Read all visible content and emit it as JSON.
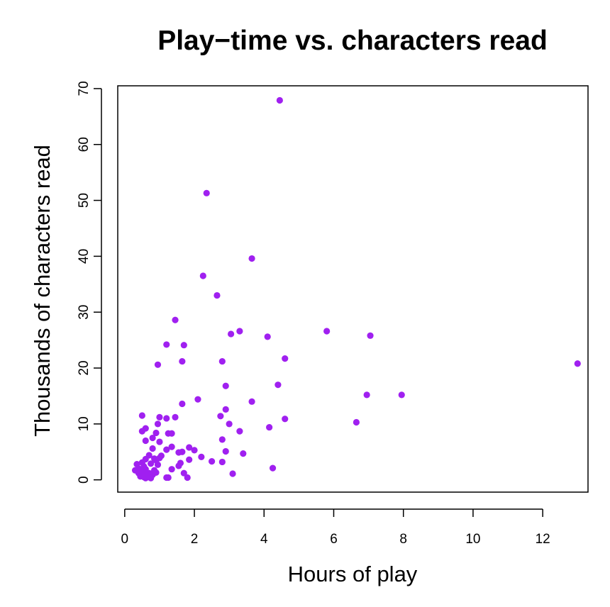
{
  "chart_data": {
    "type": "scatter",
    "title": "Play−time vs. characters read",
    "xlabel": "Hours of play",
    "ylabel": "Thousands of characters read",
    "xlim": [
      -0.2,
      13.3
    ],
    "ylim": [
      -2.2,
      70.5
    ],
    "xticks": [
      0,
      2,
      4,
      6,
      8,
      10,
      12
    ],
    "yticks": [
      0,
      10,
      20,
      30,
      40,
      50,
      60,
      70
    ],
    "point_color": "#a020f0",
    "grid": false,
    "legend": "none",
    "points": [
      {
        "x": 4.45,
        "y": 67.9
      },
      {
        "x": 2.35,
        "y": 51.3
      },
      {
        "x": 3.65,
        "y": 39.6
      },
      {
        "x": 2.25,
        "y": 36.5
      },
      {
        "x": 2.65,
        "y": 33.0
      },
      {
        "x": 1.45,
        "y": 28.6
      },
      {
        "x": 3.3,
        "y": 26.6
      },
      {
        "x": 3.05,
        "y": 26.1
      },
      {
        "x": 5.8,
        "y": 26.6
      },
      {
        "x": 7.05,
        "y": 25.8
      },
      {
        "x": 4.1,
        "y": 25.6
      },
      {
        "x": 1.2,
        "y": 24.2
      },
      {
        "x": 1.7,
        "y": 24.1
      },
      {
        "x": 4.6,
        "y": 21.7
      },
      {
        "x": 1.65,
        "y": 21.2
      },
      {
        "x": 2.8,
        "y": 21.2
      },
      {
        "x": 0.95,
        "y": 20.6
      },
      {
        "x": 13.0,
        "y": 20.8
      },
      {
        "x": 4.4,
        "y": 17.0
      },
      {
        "x": 2.9,
        "y": 16.8
      },
      {
        "x": 6.95,
        "y": 15.2
      },
      {
        "x": 7.95,
        "y": 15.2
      },
      {
        "x": 2.1,
        "y": 14.4
      },
      {
        "x": 3.65,
        "y": 14.0
      },
      {
        "x": 1.65,
        "y": 13.6
      },
      {
        "x": 2.9,
        "y": 12.6
      },
      {
        "x": 0.5,
        "y": 11.5
      },
      {
        "x": 2.75,
        "y": 11.4
      },
      {
        "x": 1.0,
        "y": 11.2
      },
      {
        "x": 1.2,
        "y": 11.0
      },
      {
        "x": 1.45,
        "y": 11.2
      },
      {
        "x": 4.6,
        "y": 10.9
      },
      {
        "x": 6.65,
        "y": 10.3
      },
      {
        "x": 3.0,
        "y": 10.0
      },
      {
        "x": 0.95,
        "y": 10.0
      },
      {
        "x": 4.15,
        "y": 9.4
      },
      {
        "x": 0.6,
        "y": 9.2
      },
      {
        "x": 0.5,
        "y": 8.7
      },
      {
        "x": 3.3,
        "y": 8.7
      },
      {
        "x": 0.9,
        "y": 8.4
      },
      {
        "x": 1.25,
        "y": 8.3
      },
      {
        "x": 1.35,
        "y": 8.3
      },
      {
        "x": 0.8,
        "y": 7.5
      },
      {
        "x": 2.8,
        "y": 7.2
      },
      {
        "x": 0.6,
        "y": 7.0
      },
      {
        "x": 1.0,
        "y": 6.8
      },
      {
        "x": 1.35,
        "y": 5.9
      },
      {
        "x": 1.85,
        "y": 5.8
      },
      {
        "x": 0.8,
        "y": 5.6
      },
      {
        "x": 1.2,
        "y": 5.4
      },
      {
        "x": 2.0,
        "y": 5.3
      },
      {
        "x": 2.9,
        "y": 5.1
      },
      {
        "x": 1.65,
        "y": 5.0
      },
      {
        "x": 1.55,
        "y": 4.9
      },
      {
        "x": 3.4,
        "y": 4.7
      },
      {
        "x": 1.05,
        "y": 4.3
      },
      {
        "x": 0.7,
        "y": 4.4
      },
      {
        "x": 2.2,
        "y": 4.1
      },
      {
        "x": 0.6,
        "y": 3.7
      },
      {
        "x": 0.85,
        "y": 3.8
      },
      {
        "x": 1.0,
        "y": 3.9
      },
      {
        "x": 1.85,
        "y": 3.6
      },
      {
        "x": 0.9,
        "y": 3.5
      },
      {
        "x": 2.5,
        "y": 3.3
      },
      {
        "x": 2.8,
        "y": 3.2
      },
      {
        "x": 0.5,
        "y": 3.1
      },
      {
        "x": 1.6,
        "y": 3.0
      },
      {
        "x": 0.75,
        "y": 2.9
      },
      {
        "x": 0.35,
        "y": 2.8
      },
      {
        "x": 0.95,
        "y": 2.7
      },
      {
        "x": 1.55,
        "y": 2.5
      },
      {
        "x": 0.55,
        "y": 2.4
      },
      {
        "x": 4.25,
        "y": 2.1
      },
      {
        "x": 0.4,
        "y": 2.0
      },
      {
        "x": 0.5,
        "y": 1.9
      },
      {
        "x": 0.6,
        "y": 1.9
      },
      {
        "x": 1.35,
        "y": 1.9
      },
      {
        "x": 0.3,
        "y": 1.7
      },
      {
        "x": 0.45,
        "y": 1.6
      },
      {
        "x": 0.85,
        "y": 1.7
      },
      {
        "x": 0.55,
        "y": 1.4
      },
      {
        "x": 0.9,
        "y": 1.3
      },
      {
        "x": 0.4,
        "y": 1.2
      },
      {
        "x": 0.7,
        "y": 1.2
      },
      {
        "x": 1.7,
        "y": 1.2
      },
      {
        "x": 3.1,
        "y": 1.1
      },
      {
        "x": 0.5,
        "y": 0.9
      },
      {
        "x": 0.65,
        "y": 0.9
      },
      {
        "x": 0.8,
        "y": 0.9
      },
      {
        "x": 0.45,
        "y": 0.6
      },
      {
        "x": 0.55,
        "y": 0.5
      },
      {
        "x": 0.65,
        "y": 0.5
      },
      {
        "x": 0.6,
        "y": 0.3
      },
      {
        "x": 0.75,
        "y": 0.3
      },
      {
        "x": 1.2,
        "y": 0.4
      },
      {
        "x": 1.25,
        "y": 0.4
      },
      {
        "x": 1.8,
        "y": 0.4
      }
    ]
  }
}
